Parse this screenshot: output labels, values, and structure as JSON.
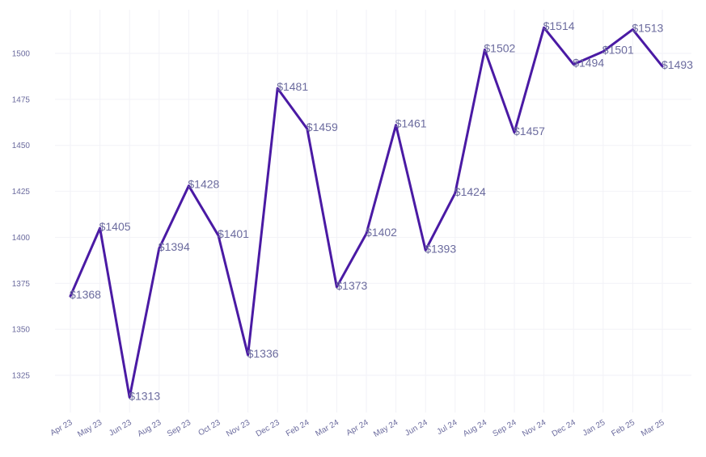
{
  "chart_data": {
    "type": "line",
    "title": "",
    "xlabel": "",
    "ylabel": "",
    "categories": [
      "Apr 23",
      "May 23",
      "Jun 23",
      "Aug 23",
      "Sep 23",
      "Oct 23",
      "Nov 23",
      "Dec 23",
      "Feb 24",
      "Mar 24",
      "Apr 24",
      "May 24",
      "Jun 24",
      "Jul 24",
      "Aug 24",
      "Sep 24",
      "Nov 24",
      "Dec 24",
      "Jan 25",
      "Feb 25",
      "Mar 25"
    ],
    "values": [
      1368,
      1405,
      1313,
      1394,
      1428,
      1401,
      1336,
      1481,
      1459,
      1373,
      1402,
      1461,
      1393,
      1424,
      1502,
      1457,
      1514,
      1494,
      1501,
      1513,
      1493
    ],
    "data_labels": [
      "$1368",
      "$1405",
      "$1313",
      "$1394",
      "$1428",
      "$1401",
      "$1336",
      "$1481",
      "$1459",
      "$1373",
      "$1402",
      "$1461",
      "$1393",
      "$1424",
      "$1502",
      "$1457",
      "$1514",
      "$1494",
      "$1501",
      "$1513",
      "$1493"
    ],
    "y_ticks": [
      1325,
      1350,
      1375,
      1400,
      1425,
      1450,
      1475,
      1500
    ],
    "ylim": [
      1305,
      1522
    ],
    "grid": true,
    "legend": "none",
    "line_color": "#4a1aa4",
    "label_color": "#6b6b9e"
  }
}
